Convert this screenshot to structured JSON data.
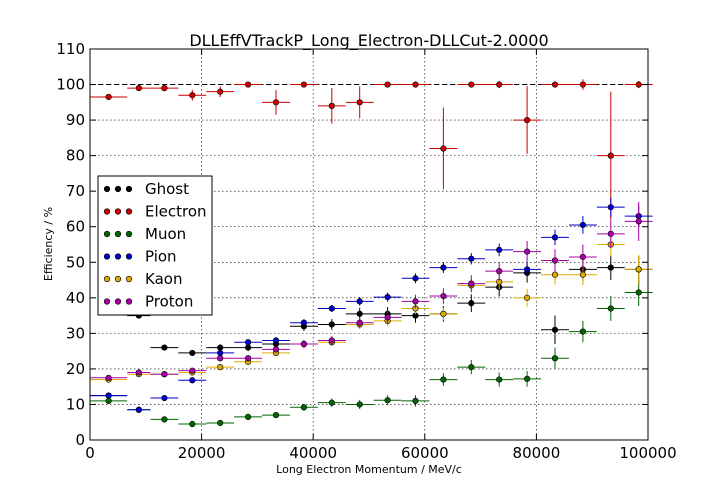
{
  "chart_data": {
    "type": "scatter",
    "title": "DLLEffVTrackP_Long_Electron-DLLCut-2.0000",
    "xlabel": "Long Electron Momentum / MeV/c",
    "ylabel": "Efficiency / %",
    "xlim": [
      0,
      100000
    ],
    "ylim": [
      0,
      110
    ],
    "xticks": [
      0,
      20000,
      40000,
      60000,
      80000,
      100000
    ],
    "xtick_labels": [
      "0",
      "20000",
      "40000",
      "60000",
      "80000",
      "100000"
    ],
    "yticks": [
      0,
      10,
      20,
      30,
      40,
      50,
      60,
      70,
      80,
      90,
      100,
      110
    ],
    "ytick_labels": [
      "0",
      "10",
      "20",
      "30",
      "40",
      "50",
      "60",
      "70",
      "80",
      "90",
      "100",
      "110"
    ],
    "grid": true,
    "reference_line": 100,
    "legend_position": "center-left",
    "series": [
      {
        "name": "Ghost",
        "color": "#000000",
        "points": [
          {
            "x": 3333,
            "y": 12.5,
            "xerr": 3333,
            "yerr": 0.7
          },
          {
            "x": 8750,
            "y": 35.0,
            "xerr": 2083,
            "yerr": 0.6
          },
          {
            "x": 13333,
            "y": 26.0,
            "xerr": 2500,
            "yerr": 0.6
          },
          {
            "x": 18333,
            "y": 24.5,
            "xerr": 2500,
            "yerr": 0.8
          },
          {
            "x": 23333,
            "y": 26.0,
            "xerr": 2500,
            "yerr": 0.9
          },
          {
            "x": 28333,
            "y": 26.0,
            "xerr": 2500,
            "yerr": 1.0
          },
          {
            "x": 33333,
            "y": 27.0,
            "xerr": 2500,
            "yerr": 1.1
          },
          {
            "x": 38333,
            "y": 32.0,
            "xerr": 2500,
            "yerr": 1.3
          },
          {
            "x": 43333,
            "y": 32.5,
            "xerr": 2500,
            "yerr": 1.5
          },
          {
            "x": 48333,
            "y": 35.5,
            "xerr": 2500,
            "yerr": 1.7
          },
          {
            "x": 53333,
            "y": 35.5,
            "xerr": 2500,
            "yerr": 1.9
          },
          {
            "x": 58333,
            "y": 35.0,
            "xerr": 2500,
            "yerr": 2.0
          },
          {
            "x": 63333,
            "y": 35.5,
            "xerr": 2500,
            "yerr": 2.2
          },
          {
            "x": 68333,
            "y": 38.5,
            "xerr": 2500,
            "yerr": 2.5
          },
          {
            "x": 73333,
            "y": 43.0,
            "xerr": 2500,
            "yerr": 2.6
          },
          {
            "x": 78333,
            "y": 47.0,
            "xerr": 2500,
            "yerr": 2.7
          },
          {
            "x": 83333,
            "y": 31.0,
            "xerr": 2500,
            "yerr": 4.0
          },
          {
            "x": 88333,
            "y": 48.0,
            "xerr": 2500,
            "yerr": 3.2
          },
          {
            "x": 93333,
            "y": 48.5,
            "xerr": 2500,
            "yerr": 3.5
          },
          {
            "x": 98333,
            "y": 48.0,
            "xerr": 2500,
            "yerr": 3.8
          }
        ]
      },
      {
        "name": "Electron",
        "color": "#cc0000",
        "points": [
          {
            "x": 3333,
            "y": 96.5,
            "xerr": 3333,
            "yerr": 0.6
          },
          {
            "x": 8750,
            "y": 99.0,
            "xerr": 2083,
            "yerr": 0.5
          },
          {
            "x": 13333,
            "y": 99.0,
            "xerr": 2500,
            "yerr": 0.9
          },
          {
            "x": 18333,
            "y": 97.0,
            "xerr": 2500,
            "yerr": 1.5
          },
          {
            "x": 23333,
            "y": 98.0,
            "xerr": 2500,
            "yerr": 1.5
          },
          {
            "x": 28333,
            "y": 100.0,
            "xerr": 2500,
            "yerr": 0.4
          },
          {
            "x": 33333,
            "y": 95.0,
            "xerr": 2500,
            "yerr": 3.5
          },
          {
            "x": 38333,
            "y": 100.0,
            "xerr": 2500,
            "yerr": 0.4
          },
          {
            "x": 43333,
            "y": 94.0,
            "xerr": 2500,
            "yerr": 5.0
          },
          {
            "x": 48333,
            "y": 95.0,
            "xerr": 2500,
            "yerr": 4.5
          },
          {
            "x": 53333,
            "y": 100.0,
            "xerr": 2500,
            "yerr": 0.4
          },
          {
            "x": 58333,
            "y": 100.0,
            "xerr": 2500,
            "yerr": 0.4
          },
          {
            "x": 63333,
            "y": 82.0,
            "xerr": 2500,
            "yerr": 11.5
          },
          {
            "x": 68333,
            "y": 100.0,
            "xerr": 2500,
            "yerr": 0.4
          },
          {
            "x": 73333,
            "y": 100.0,
            "xerr": 2500,
            "yerr": 1.0
          },
          {
            "x": 78333,
            "y": 90.0,
            "xerr": 2500,
            "yerr": 9.5
          },
          {
            "x": 83333,
            "y": 100.0,
            "xerr": 2500,
            "yerr": 0.4
          },
          {
            "x": 88333,
            "y": 100.0,
            "xerr": 2500,
            "yerr": 1.5
          },
          {
            "x": 93333,
            "y": 80.0,
            "xerr": 2500,
            "yerr": 18.0
          },
          {
            "x": 98333,
            "y": 100.0,
            "xerr": 2500,
            "yerr": 1.0
          }
        ]
      },
      {
        "name": "Muon",
        "color": "#006600",
        "points": [
          {
            "x": 3333,
            "y": 11.0,
            "xerr": 3333,
            "yerr": 0.7
          },
          {
            "x": 8750,
            "y": 8.5,
            "xerr": 2083,
            "yerr": 0.6
          },
          {
            "x": 13333,
            "y": 5.8,
            "xerr": 2500,
            "yerr": 0.6
          },
          {
            "x": 18333,
            "y": 4.5,
            "xerr": 2500,
            "yerr": 0.6
          },
          {
            "x": 23333,
            "y": 4.8,
            "xerr": 2500,
            "yerr": 0.6
          },
          {
            "x": 28333,
            "y": 6.5,
            "xerr": 2500,
            "yerr": 0.7
          },
          {
            "x": 33333,
            "y": 7.0,
            "xerr": 2500,
            "yerr": 0.8
          },
          {
            "x": 38333,
            "y": 9.2,
            "xerr": 2500,
            "yerr": 1.0
          },
          {
            "x": 43333,
            "y": 10.5,
            "xerr": 2500,
            "yerr": 1.2
          },
          {
            "x": 48333,
            "y": 10.0,
            "xerr": 2500,
            "yerr": 1.3
          },
          {
            "x": 53333,
            "y": 11.2,
            "xerr": 2500,
            "yerr": 1.4
          },
          {
            "x": 58333,
            "y": 11.0,
            "xerr": 2500,
            "yerr": 1.6
          },
          {
            "x": 63333,
            "y": 17.0,
            "xerr": 2500,
            "yerr": 1.8
          },
          {
            "x": 68333,
            "y": 20.5,
            "xerr": 2500,
            "yerr": 2.0
          },
          {
            "x": 73333,
            "y": 17.0,
            "xerr": 2500,
            "yerr": 2.0
          },
          {
            "x": 78333,
            "y": 17.2,
            "xerr": 2500,
            "yerr": 2.2
          },
          {
            "x": 83333,
            "y": 23.0,
            "xerr": 2500,
            "yerr": 3.0
          },
          {
            "x": 88333,
            "y": 30.5,
            "xerr": 2500,
            "yerr": 3.0
          },
          {
            "x": 93333,
            "y": 37.0,
            "xerr": 2500,
            "yerr": 3.5
          },
          {
            "x": 98333,
            "y": 41.5,
            "xerr": 2500,
            "yerr": 3.8
          }
        ]
      },
      {
        "name": "Pion",
        "color": "#0000cc",
        "points": [
          {
            "x": 3333,
            "y": 12.5,
            "xerr": 3333,
            "yerr": 0.5
          },
          {
            "x": 8750,
            "y": 8.5,
            "xerr": 2083,
            "yerr": 0.5
          },
          {
            "x": 13333,
            "y": 11.8,
            "xerr": 2500,
            "yerr": 0.5
          },
          {
            "x": 18333,
            "y": 16.8,
            "xerr": 2500,
            "yerr": 0.6
          },
          {
            "x": 23333,
            "y": 24.5,
            "xerr": 2500,
            "yerr": 0.7
          },
          {
            "x": 28333,
            "y": 27.5,
            "xerr": 2500,
            "yerr": 0.8
          },
          {
            "x": 33333,
            "y": 28.0,
            "xerr": 2500,
            "yerr": 0.9
          },
          {
            "x": 38333,
            "y": 33.0,
            "xerr": 2500,
            "yerr": 1.0
          },
          {
            "x": 43333,
            "y": 37.0,
            "xerr": 2500,
            "yerr": 1.0
          },
          {
            "x": 48333,
            "y": 39.0,
            "xerr": 2500,
            "yerr": 1.2
          },
          {
            "x": 53333,
            "y": 40.2,
            "xerr": 2500,
            "yerr": 1.3
          },
          {
            "x": 58333,
            "y": 45.5,
            "xerr": 2500,
            "yerr": 1.4
          },
          {
            "x": 63333,
            "y": 48.5,
            "xerr": 2500,
            "yerr": 1.5
          },
          {
            "x": 68333,
            "y": 51.0,
            "xerr": 2500,
            "yerr": 1.6
          },
          {
            "x": 73333,
            "y": 53.5,
            "xerr": 2500,
            "yerr": 1.8
          },
          {
            "x": 78333,
            "y": 48.0,
            "xerr": 2500,
            "yerr": 2.0
          },
          {
            "x": 83333,
            "y": 57.0,
            "xerr": 2500,
            "yerr": 2.2
          },
          {
            "x": 88333,
            "y": 60.5,
            "xerr": 2500,
            "yerr": 2.5
          },
          {
            "x": 93333,
            "y": 65.5,
            "xerr": 2500,
            "yerr": 2.8
          },
          {
            "x": 98333,
            "y": 63.0,
            "xerr": 2500,
            "yerr": 3.0
          }
        ]
      },
      {
        "name": "Kaon",
        "color": "#ddaa00",
        "points": [
          {
            "x": 3333,
            "y": 17.0,
            "xerr": 3333,
            "yerr": 0.5
          },
          {
            "x": 8750,
            "y": 18.5,
            "xerr": 2083,
            "yerr": 0.5
          },
          {
            "x": 13333,
            "y": 18.5,
            "xerr": 2500,
            "yerr": 0.5
          },
          {
            "x": 18333,
            "y": 19.0,
            "xerr": 2500,
            "yerr": 0.6
          },
          {
            "x": 23333,
            "y": 20.5,
            "xerr": 2500,
            "yerr": 0.7
          },
          {
            "x": 28333,
            "y": 22.0,
            "xerr": 2500,
            "yerr": 0.8
          },
          {
            "x": 33333,
            "y": 24.5,
            "xerr": 2500,
            "yerr": 0.9
          },
          {
            "x": 38333,
            "y": 27.0,
            "xerr": 2500,
            "yerr": 1.0
          },
          {
            "x": 43333,
            "y": 27.5,
            "xerr": 2500,
            "yerr": 1.1
          },
          {
            "x": 48333,
            "y": 32.5,
            "xerr": 2500,
            "yerr": 1.3
          },
          {
            "x": 53333,
            "y": 33.5,
            "xerr": 2500,
            "yerr": 1.4
          },
          {
            "x": 58333,
            "y": 37.0,
            "xerr": 2500,
            "yerr": 1.6
          },
          {
            "x": 63333,
            "y": 35.5,
            "xerr": 2500,
            "yerr": 1.8
          },
          {
            "x": 68333,
            "y": 43.5,
            "xerr": 2500,
            "yerr": 2.0
          },
          {
            "x": 73333,
            "y": 44.5,
            "xerr": 2500,
            "yerr": 2.2
          },
          {
            "x": 78333,
            "y": 40.0,
            "xerr": 2500,
            "yerr": 2.5
          },
          {
            "x": 83333,
            "y": 46.5,
            "xerr": 2500,
            "yerr": 2.8
          },
          {
            "x": 88333,
            "y": 46.5,
            "xerr": 2500,
            "yerr": 3.0
          },
          {
            "x": 93333,
            "y": 55.0,
            "xerr": 2500,
            "yerr": 3.3
          },
          {
            "x": 98333,
            "y": 48.0,
            "xerr": 2500,
            "yerr": 4.0
          }
        ]
      },
      {
        "name": "Proton",
        "color": "#aa00aa",
        "points": [
          {
            "x": 3333,
            "y": 17.5,
            "xerr": 3333,
            "yerr": 0.5
          },
          {
            "x": 8750,
            "y": 19.0,
            "xerr": 2083,
            "yerr": 0.5
          },
          {
            "x": 13333,
            "y": 18.5,
            "xerr": 2500,
            "yerr": 0.5
          },
          {
            "x": 18333,
            "y": 19.5,
            "xerr": 2500,
            "yerr": 0.6
          },
          {
            "x": 23333,
            "y": 23.0,
            "xerr": 2500,
            "yerr": 0.7
          },
          {
            "x": 28333,
            "y": 23.0,
            "xerr": 2500,
            "yerr": 0.8
          },
          {
            "x": 33333,
            "y": 25.5,
            "xerr": 2500,
            "yerr": 0.9
          },
          {
            "x": 38333,
            "y": 27.0,
            "xerr": 2500,
            "yerr": 1.2
          },
          {
            "x": 43333,
            "y": 28.0,
            "xerr": 2500,
            "yerr": 1.3
          },
          {
            "x": 48333,
            "y": 33.0,
            "xerr": 2500,
            "yerr": 1.5
          },
          {
            "x": 53333,
            "y": 34.5,
            "xerr": 2500,
            "yerr": 1.7
          },
          {
            "x": 58333,
            "y": 39.0,
            "xerr": 2500,
            "yerr": 1.9
          },
          {
            "x": 63333,
            "y": 40.5,
            "xerr": 2500,
            "yerr": 2.2
          },
          {
            "x": 68333,
            "y": 44.0,
            "xerr": 2500,
            "yerr": 2.4
          },
          {
            "x": 73333,
            "y": 47.5,
            "xerr": 2500,
            "yerr": 2.6
          },
          {
            "x": 78333,
            "y": 53.0,
            "xerr": 2500,
            "yerr": 3.0
          },
          {
            "x": 83333,
            "y": 50.5,
            "xerr": 2500,
            "yerr": 3.2
          },
          {
            "x": 88333,
            "y": 51.5,
            "xerr": 2500,
            "yerr": 3.5
          },
          {
            "x": 93333,
            "y": 58.0,
            "xerr": 2500,
            "yerr": 4.0
          },
          {
            "x": 98333,
            "y": 61.5,
            "xerr": 2500,
            "yerr": 5.5
          }
        ]
      }
    ]
  }
}
